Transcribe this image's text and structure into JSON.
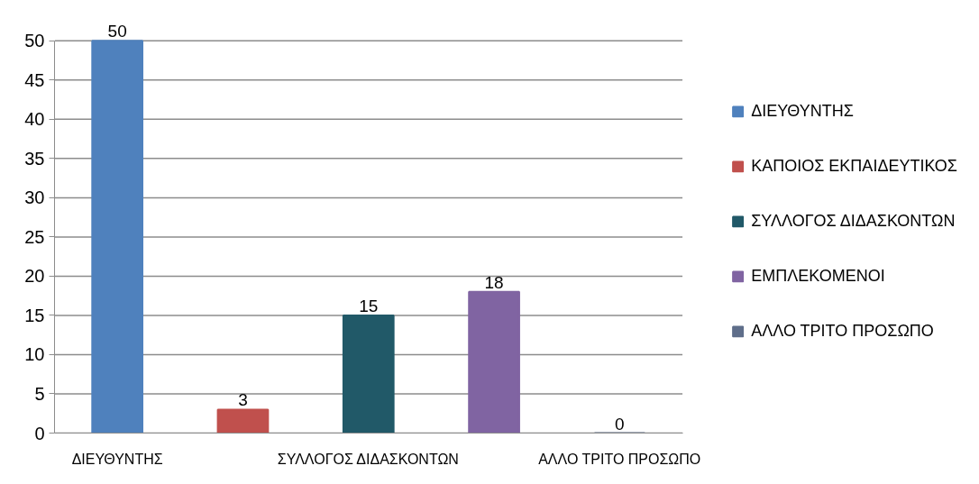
{
  "chart_data": {
    "type": "bar",
    "categories": [
      "ΔΙΕΥΘΥΝΤΗΣ",
      null,
      "ΣΥΛΛΟΓΟΣ ΔΙΔΑΣΚΟΝΤΩΝ",
      null,
      "ΑΛΛΟ ΤΡΙΤΟ ΠΡΟΣΩΠΟ"
    ],
    "series": [
      {
        "name": "ΔΙΕΥΘΥΝΤΗΣ",
        "color": "#4f81bd",
        "values": [
          50,
          null,
          null,
          null,
          null
        ]
      },
      {
        "name": "ΚΑΠΟΙΟΣ ΕΚΠΑΙΔΕΥΤΙΚΟΣ",
        "color": "#c0504d",
        "values": [
          null,
          3,
          null,
          null,
          null
        ]
      },
      {
        "name": "ΣΥΛΛΟΓΟΣ ΔΙΔΑΣΚΟΝΤΩΝ",
        "color": "#215968",
        "values": [
          null,
          null,
          15,
          null,
          null
        ]
      },
      {
        "name": "ΕΜΠΛΕΚΟΜΕΝΟΙ",
        "color": "#8064a2",
        "values": [
          null,
          null,
          null,
          18,
          null
        ]
      },
      {
        "name": "ΑΛΛΟ ΤΡΙΤΟ ΠΡΟΣΩΠΟ",
        "color": "#5f6e8a",
        "values": [
          null,
          null,
          null,
          null,
          0
        ]
      }
    ],
    "ylim": [
      0,
      50
    ],
    "yticks": [
      0,
      5,
      10,
      15,
      20,
      25,
      30,
      35,
      40,
      45,
      50
    ],
    "grid": "y",
    "legend": "right",
    "data_labels": true
  }
}
